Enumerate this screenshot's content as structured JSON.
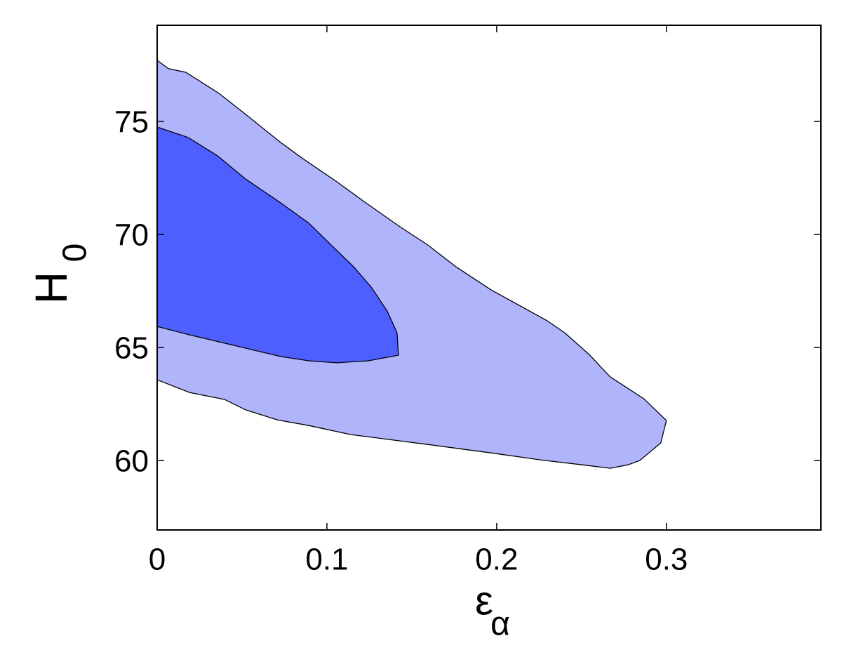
{
  "chart_data": {
    "type": "contour",
    "xlabel": "ε",
    "xlabel_sub": "α",
    "ylabel": "H",
    "ylabel_sub": "0",
    "xlim": [
      0,
      0.391
    ],
    "ylim": [
      56.93,
      79.25
    ],
    "xticks": [
      0,
      0.1,
      0.2,
      0.3
    ],
    "yticks": [
      60,
      65,
      70,
      75
    ],
    "series": [
      {
        "color": "#afb4fb",
        "x": [
          0,
          0.0066,
          0.0169,
          0.0364,
          0.0521,
          0.0727,
          0.0851,
          0.1058,
          0.1223,
          0.143,
          0.1595,
          0.176,
          0.1967,
          0.2298,
          0.2401,
          0.2545,
          0.2669,
          0.2868,
          0.3,
          0.2967,
          0.2843,
          0.2773,
          0.2669,
          0.2504,
          0.2256,
          0.1967,
          0.1595,
          0.143,
          0.114,
          0.0893,
          0.0707,
          0.0521,
          0.0397,
          0.019,
          0
        ],
        "values": [
          77.7,
          77.33,
          77.17,
          76.24,
          75.31,
          74.07,
          73.39,
          72.33,
          71.43,
          70.34,
          69.53,
          68.57,
          67.55,
          66.18,
          65.65,
          64.69,
          63.7,
          62.73,
          61.77,
          60.78,
          60.0,
          59.81,
          59.66,
          59.81,
          60.03,
          60.34,
          60.71,
          60.87,
          61.15,
          61.55,
          61.8,
          62.24,
          62.7,
          63.01,
          63.57
        ]
      },
      {
        "color": "#4e5fff",
        "x": [
          0,
          0.0182,
          0.0355,
          0.0521,
          0.0727,
          0.0893,
          0.1058,
          0.1161,
          0.1264,
          0.1355,
          0.1413,
          0.1421,
          0.1244,
          0.1058,
          0.0893,
          0.0727,
          0.0521,
          0.0314,
          0.019,
          0
        ],
        "values": [
          74.75,
          74.29,
          73.48,
          72.45,
          71.4,
          70.5,
          69.29,
          68.54,
          67.64,
          66.61,
          65.65,
          64.66,
          64.41,
          64.32,
          64.41,
          64.6,
          64.97,
          65.34,
          65.56,
          65.93
        ]
      }
    ]
  }
}
